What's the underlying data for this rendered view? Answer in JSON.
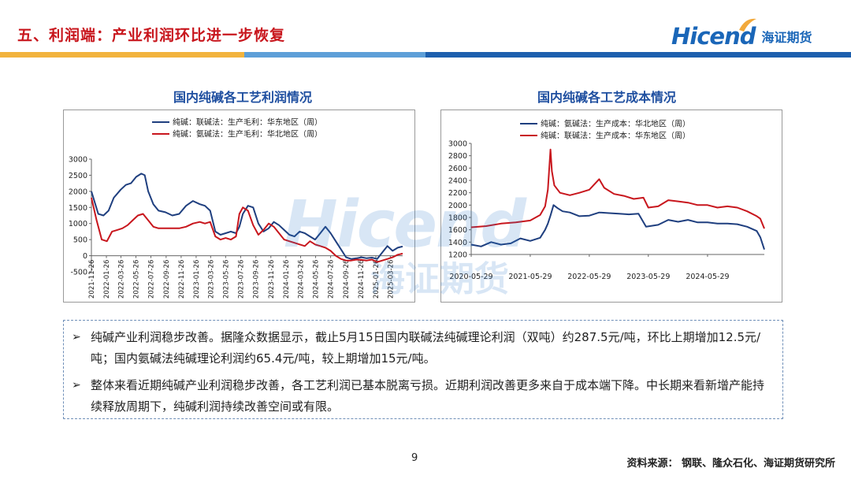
{
  "header": {
    "title": "五、利润端：产业利润环比进一步恢复",
    "logo_en": "Hicend",
    "logo_cn": "海证期货"
  },
  "watermark": {
    "en": "Hicend",
    "cn": "海证期货"
  },
  "chart_data": [
    {
      "type": "line",
      "title": "国内纯碱各工艺利润情况",
      "ylim": [
        -500,
        3000
      ],
      "yticks": [
        3000,
        2500,
        2000,
        1500,
        1000,
        500,
        0,
        -500
      ],
      "xticks": [
        "2021-11-26",
        "2022-01-26",
        "2022-03-26",
        "2022-05-26",
        "2022-07-26",
        "2022-09-26",
        "2022-11-26",
        "2023-01-26",
        "2023-03-26",
        "2023-05-26",
        "2023-07-26",
        "2023-09-26",
        "2023-11-26",
        "2024-01-26",
        "2024-03-26",
        "2024-05-26",
        "2024-07-26",
        "2024-09-26",
        "2024-11-26",
        "2025-01-26",
        "2025-03-26"
      ],
      "xrange": [
        "2021-11-26",
        "2025-05-15"
      ],
      "legend_position": "top",
      "grid": false,
      "series": [
        {
          "name": "纯碱：联碱法：生产毛利：华东地区（周）",
          "color": "#1f3f7f",
          "points": [
            [
              "2021-11-26",
              2000
            ],
            [
              "2021-12-24",
              1300
            ],
            [
              "2022-01-14",
              1250
            ],
            [
              "2022-02-04",
              1400
            ],
            [
              "2022-02-25",
              1800
            ],
            [
              "2022-03-25",
              2050
            ],
            [
              "2022-04-15",
              2200
            ],
            [
              "2022-05-06",
              2250
            ],
            [
              "2022-05-27",
              2450
            ],
            [
              "2022-06-17",
              2550
            ],
            [
              "2022-07-01",
              2500
            ],
            [
              "2022-07-15",
              2000
            ],
            [
              "2022-08-05",
              1600
            ],
            [
              "2022-08-26",
              1400
            ],
            [
              "2022-09-23",
              1350
            ],
            [
              "2022-10-21",
              1250
            ],
            [
              "2022-11-18",
              1300
            ],
            [
              "2022-12-16",
              1550
            ],
            [
              "2023-01-13",
              1700
            ],
            [
              "2023-02-10",
              1600
            ],
            [
              "2023-03-03",
              1550
            ],
            [
              "2023-03-24",
              1400
            ],
            [
              "2023-04-14",
              750
            ],
            [
              "2023-05-05",
              650
            ],
            [
              "2023-05-26",
              700
            ],
            [
              "2023-06-16",
              750
            ],
            [
              "2023-07-07",
              700
            ],
            [
              "2023-07-21",
              900
            ],
            [
              "2023-08-04",
              1300
            ],
            [
              "2023-08-25",
              1550
            ],
            [
              "2023-09-15",
              1500
            ],
            [
              "2023-10-06",
              1000
            ],
            [
              "2023-10-27",
              750
            ],
            [
              "2023-11-17",
              850
            ],
            [
              "2023-12-08",
              1050
            ],
            [
              "2023-12-29",
              950
            ],
            [
              "2024-01-19",
              800
            ],
            [
              "2024-02-09",
              650
            ],
            [
              "2024-03-01",
              600
            ],
            [
              "2024-03-22",
              750
            ],
            [
              "2024-04-12",
              700
            ],
            [
              "2024-05-03",
              600
            ],
            [
              "2024-05-24",
              500
            ],
            [
              "2024-06-14",
              700
            ],
            [
              "2024-07-05",
              900
            ],
            [
              "2024-07-26",
              700
            ],
            [
              "2024-08-16",
              450
            ],
            [
              "2024-09-06",
              200
            ],
            [
              "2024-09-27",
              -50
            ],
            [
              "2024-10-18",
              -100
            ],
            [
              "2024-11-08",
              -80
            ],
            [
              "2024-11-29",
              -50
            ],
            [
              "2024-12-20",
              -80
            ],
            [
              "2025-01-10",
              -60
            ],
            [
              "2025-01-31",
              -100
            ],
            [
              "2025-02-21",
              100
            ],
            [
              "2025-03-14",
              300
            ],
            [
              "2025-04-04",
              150
            ],
            [
              "2025-04-25",
              250
            ],
            [
              "2025-05-15",
              288
            ]
          ]
        },
        {
          "name": "纯碱：氨碱法：生产毛利：华北地区（周）",
          "color": "#c8161d",
          "points": [
            [
              "2021-11-26",
              1800
            ],
            [
              "2021-12-17",
              1100
            ],
            [
              "2022-01-07",
              500
            ],
            [
              "2022-01-28",
              450
            ],
            [
              "2022-02-18",
              750
            ],
            [
              "2022-03-11",
              800
            ],
            [
              "2022-04-01",
              850
            ],
            [
              "2022-04-22",
              950
            ],
            [
              "2022-05-13",
              1100
            ],
            [
              "2022-06-03",
              1250
            ],
            [
              "2022-06-24",
              1300
            ],
            [
              "2022-07-15",
              1100
            ],
            [
              "2022-08-05",
              900
            ],
            [
              "2022-08-26",
              850
            ],
            [
              "2022-09-23",
              850
            ],
            [
              "2022-10-21",
              850
            ],
            [
              "2022-11-18",
              850
            ],
            [
              "2022-12-16",
              900
            ],
            [
              "2023-01-13",
              1000
            ],
            [
              "2023-02-10",
              1050
            ],
            [
              "2023-03-03",
              1000
            ],
            [
              "2023-03-24",
              1050
            ],
            [
              "2023-04-14",
              600
            ],
            [
              "2023-05-05",
              500
            ],
            [
              "2023-05-26",
              550
            ],
            [
              "2023-06-16",
              500
            ],
            [
              "2023-07-07",
              600
            ],
            [
              "2023-07-21",
              1300
            ],
            [
              "2023-08-04",
              1500
            ],
            [
              "2023-08-25",
              1400
            ],
            [
              "2023-09-15",
              950
            ],
            [
              "2023-10-06",
              650
            ],
            [
              "2023-10-27",
              800
            ],
            [
              "2023-11-17",
              1000
            ],
            [
              "2023-12-08",
              900
            ],
            [
              "2023-12-29",
              700
            ],
            [
              "2024-01-19",
              500
            ],
            [
              "2024-02-09",
              450
            ],
            [
              "2024-03-01",
              400
            ],
            [
              "2024-03-22",
              350
            ],
            [
              "2024-04-12",
              300
            ],
            [
              "2024-05-03",
              450
            ],
            [
              "2024-05-24",
              350
            ],
            [
              "2024-06-14",
              300
            ],
            [
              "2024-07-05",
              250
            ],
            [
              "2024-07-26",
              150
            ],
            [
              "2024-08-16",
              0
            ],
            [
              "2024-09-06",
              -100
            ],
            [
              "2024-09-27",
              -150
            ],
            [
              "2024-10-18",
              -150
            ],
            [
              "2024-11-08",
              -120
            ],
            [
              "2024-11-29",
              -130
            ],
            [
              "2024-12-20",
              -150
            ],
            [
              "2025-01-10",
              -120
            ],
            [
              "2025-01-31",
              -200
            ],
            [
              "2025-02-21",
              -150
            ],
            [
              "2025-03-14",
              -100
            ],
            [
              "2025-04-04",
              -50
            ],
            [
              "2025-04-25",
              30
            ],
            [
              "2025-05-15",
              65
            ]
          ]
        }
      ]
    },
    {
      "type": "line",
      "title": "国内纯碱各工艺成本情况",
      "ylim": [
        1200,
        3000
      ],
      "yticks": [
        3000,
        2800,
        2600,
        2400,
        2200,
        2000,
        1800,
        1600,
        1400,
        1200
      ],
      "xticks": [
        "2020-05-29",
        "2021-05-29",
        "2022-05-29",
        "2023-05-29",
        "2024-05-29"
      ],
      "xrange": [
        "2020-05-29",
        "2025-05-15"
      ],
      "legend_position": "top",
      "grid": false,
      "series": [
        {
          "name": "纯碱：氨碱法：生产成本：华北地区（周）",
          "color": "#1f3f7f",
          "points": [
            [
              "2020-05-29",
              1360
            ],
            [
              "2020-07-29",
              1330
            ],
            [
              "2020-09-29",
              1400
            ],
            [
              "2020-11-29",
              1360
            ],
            [
              "2021-01-29",
              1380
            ],
            [
              "2021-03-29",
              1460
            ],
            [
              "2021-05-29",
              1420
            ],
            [
              "2021-07-29",
              1470
            ],
            [
              "2021-08-29",
              1600
            ],
            [
              "2021-09-15",
              1700
            ],
            [
              "2021-10-01",
              1830
            ],
            [
              "2021-10-20",
              2000
            ],
            [
              "2021-11-15",
              1950
            ],
            [
              "2021-12-15",
              1900
            ],
            [
              "2022-01-29",
              1880
            ],
            [
              "2022-03-29",
              1820
            ],
            [
              "2022-05-29",
              1830
            ],
            [
              "2022-07-29",
              1880
            ],
            [
              "2022-09-29",
              1870
            ],
            [
              "2022-11-29",
              1860
            ],
            [
              "2023-01-29",
              1850
            ],
            [
              "2023-03-29",
              1860
            ],
            [
              "2023-05-15",
              1650
            ],
            [
              "2023-07-29",
              1680
            ],
            [
              "2023-09-29",
              1760
            ],
            [
              "2023-11-29",
              1730
            ],
            [
              "2024-01-29",
              1760
            ],
            [
              "2024-03-29",
              1720
            ],
            [
              "2024-05-29",
              1720
            ],
            [
              "2024-07-29",
              1700
            ],
            [
              "2024-09-29",
              1700
            ],
            [
              "2024-11-29",
              1690
            ],
            [
              "2025-01-29",
              1650
            ],
            [
              "2025-03-29",
              1580
            ],
            [
              "2025-04-20",
              1480
            ],
            [
              "2025-05-15",
              1280
            ]
          ]
        },
        {
          "name": "纯碱：联碱法：生产成本：华东地区（周）",
          "color": "#c8161d",
          "points": [
            [
              "2020-05-29",
              1640
            ],
            [
              "2020-08-29",
              1660
            ],
            [
              "2020-11-29",
              1700
            ],
            [
              "2021-02-28",
              1720
            ],
            [
              "2021-05-29",
              1750
            ],
            [
              "2021-07-29",
              1840
            ],
            [
              "2021-08-29",
              1980
            ],
            [
              "2021-09-15",
              2250
            ],
            [
              "2021-10-01",
              2900
            ],
            [
              "2021-10-10",
              2550
            ],
            [
              "2021-10-25",
              2320
            ],
            [
              "2021-11-29",
              2200
            ],
            [
              "2022-01-29",
              2160
            ],
            [
              "2022-03-29",
              2200
            ],
            [
              "2022-05-29",
              2250
            ],
            [
              "2022-07-29",
              2420
            ],
            [
              "2022-08-29",
              2280
            ],
            [
              "2022-10-29",
              2180
            ],
            [
              "2022-12-29",
              2150
            ],
            [
              "2023-02-28",
              2100
            ],
            [
              "2023-04-29",
              2120
            ],
            [
              "2023-05-29",
              1960
            ],
            [
              "2023-07-29",
              1980
            ],
            [
              "2023-09-29",
              2080
            ],
            [
              "2023-11-29",
              2060
            ],
            [
              "2024-01-29",
              2040
            ],
            [
              "2024-03-29",
              2000
            ],
            [
              "2024-05-29",
              2000
            ],
            [
              "2024-07-29",
              1960
            ],
            [
              "2024-09-29",
              1980
            ],
            [
              "2024-11-29",
              1960
            ],
            [
              "2025-01-29",
              1900
            ],
            [
              "2025-03-29",
              1820
            ],
            [
              "2025-04-20",
              1780
            ],
            [
              "2025-05-15",
              1620
            ]
          ]
        }
      ]
    }
  ],
  "text": {
    "bullet1": "纯碱产业利润稳步改善。据隆众数据显示，截止5月15日国内联碱法纯碱理论利润（双吨）约287.5元/吨，环比上期增加12.5元/吨；国内氨碱法纯碱理论利润约65.4元/吨，较上期增加15元/吨。",
    "bullet2": "整体来看近期纯碱产业利润稳步改善，各工艺利润已基本脱离亏损。近期利润改善更多来自于成本端下降。中长期来看新增产能持续释放周期下，纯碱利润持续改善空间或有限。"
  },
  "footer": {
    "page": "9",
    "source": "资料来源：  钢联、隆众石化、海证期货研究所"
  }
}
